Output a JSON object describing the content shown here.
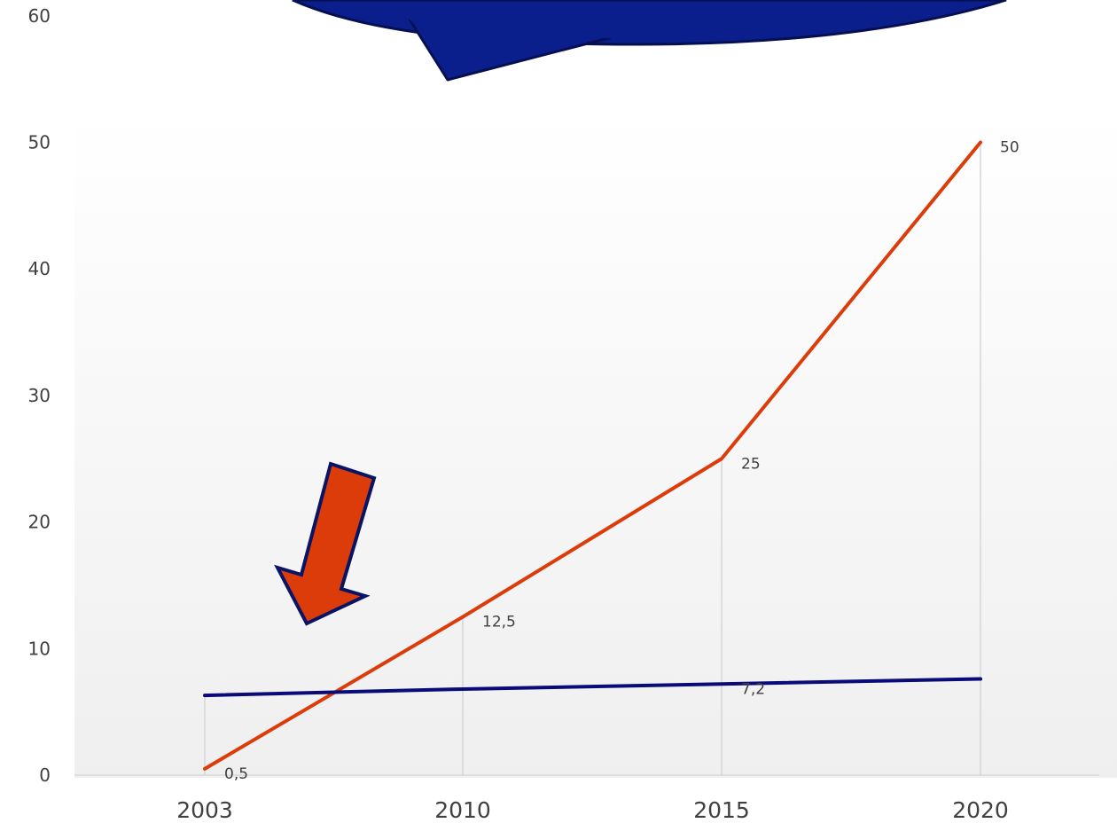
{
  "chart_data": {
    "type": "line",
    "categories": [
      "2003",
      "2010",
      "2015",
      "2020"
    ],
    "series": [
      {
        "values": [
          0.5,
          12.5,
          25,
          50
        ],
        "color": "#dc3c0a",
        "data_labels": [
          "0,5",
          "12,5",
          "25",
          "50"
        ]
      },
      {
        "values": [
          6.3,
          6.8,
          7.2,
          7.6
        ],
        "color": "#0a0a78",
        "data_labels": [
          "",
          "",
          "7,2",
          ""
        ]
      }
    ],
    "ylim": [
      0,
      60
    ],
    "yticks": [
      "0",
      "10",
      "20",
      "30",
      "40",
      "50",
      "60"
    ],
    "grid": false,
    "drop_lines": true,
    "plot_background": "gradient white to light gray"
  },
  "annotations": {
    "callout_color": "#0a1e8c",
    "arrow_color": "#dc3c0a",
    "arrow_outline": "#0a1464"
  }
}
